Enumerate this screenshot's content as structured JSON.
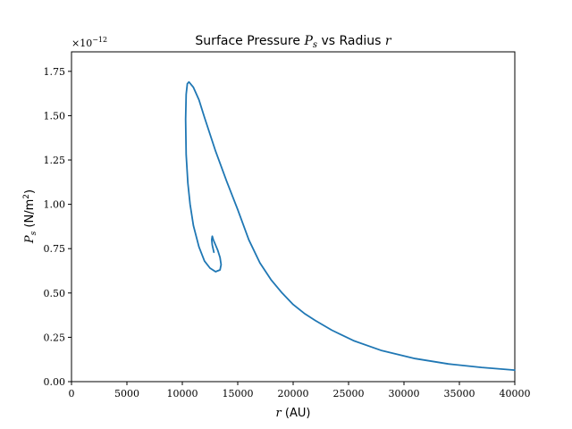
{
  "chart_data": {
    "type": "line",
    "title_prefix": "Surface Pressure ",
    "title_symbol": "P",
    "title_symbol_sub": "s",
    "title_mid": " vs Radius ",
    "title_var": "r",
    "xlabel_var": "r",
    "xlabel_unit": " (AU)",
    "ylabel_symbol": "P",
    "ylabel_symbol_sub": "s",
    "ylabel_unit": " (N/m",
    "ylabel_unit_sup": "2",
    "ylabel_unit_close": ")",
    "offset_text_base": "×10",
    "offset_text_exp": "−12",
    "xlim": [
      0,
      40000
    ],
    "ylim": [
      0,
      1.86
    ],
    "x_ticks": [
      "0",
      "5000",
      "10000",
      "15000",
      "20000",
      "25000",
      "30000",
      "35000",
      "40000"
    ],
    "y_ticks": [
      "0.00",
      "0.25",
      "0.50",
      "0.75",
      "1.00",
      "1.25",
      "1.50",
      "1.75"
    ],
    "grid": false,
    "line_color": "#1f77b4",
    "series": [
      {
        "x": [
          40000,
          37000,
          34000,
          31000,
          28000,
          25500,
          23500,
          22000,
          21000,
          20000,
          19000,
          18000,
          17000,
          16000,
          15000,
          14000,
          13000,
          12000,
          11500,
          11000,
          10600,
          10450,
          10350,
          10300,
          10350,
          10500,
          10700,
          11000,
          11500,
          12000,
          12500,
          13000,
          13400,
          13500,
          13400,
          13200,
          13000,
          12800,
          12700,
          12650,
          12700,
          12850
        ],
        "y": [
          0.065,
          0.08,
          0.1,
          0.13,
          0.175,
          0.23,
          0.29,
          0.345,
          0.385,
          0.435,
          0.5,
          0.575,
          0.67,
          0.8,
          0.97,
          1.13,
          1.3,
          1.49,
          1.59,
          1.66,
          1.69,
          1.68,
          1.62,
          1.48,
          1.28,
          1.12,
          1.0,
          0.88,
          0.76,
          0.68,
          0.64,
          0.62,
          0.63,
          0.66,
          0.7,
          0.74,
          0.77,
          0.8,
          0.82,
          0.8,
          0.77,
          0.73
        ]
      }
    ]
  }
}
